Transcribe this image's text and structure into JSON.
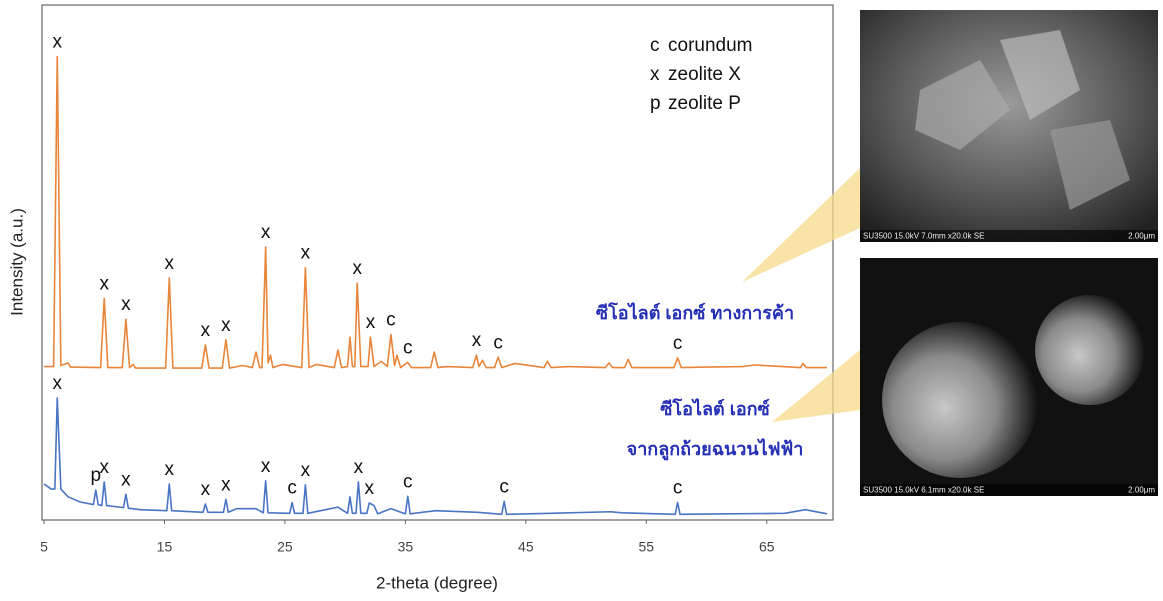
{
  "chart_data": {
    "type": "line",
    "xlabel": "2-theta (degree)",
    "ylabel": "Intensity (a.u.)",
    "xlim": [
      5,
      70
    ],
    "xticks": [
      5,
      15,
      25,
      35,
      45,
      55,
      65
    ],
    "ylim": [
      0,
      100
    ],
    "legend_text": [
      {
        "symbol": "c",
        "label": "corundum"
      },
      {
        "symbol": "x",
        "label": "zeolite X"
      },
      {
        "symbol": "p",
        "label": "zeolite P"
      }
    ],
    "series": [
      {
        "name": [
          "ซีโอไลต์ เอกซ์ ทางการค้า"
        ],
        "color": "#e8853a",
        "x": [
          5,
          5.8,
          6.1,
          6.4,
          7.0,
          7.2,
          9.7,
          10.0,
          10.3,
          11.5,
          11.8,
          12.1,
          12.4,
          12.6,
          15.1,
          15.4,
          15.7,
          18.1,
          18.4,
          18.7,
          19.8,
          20.1,
          20.4,
          21.5,
          22.3,
          22.6,
          22.9,
          23.1,
          23.4,
          23.6,
          23.8,
          24.0,
          24.8,
          26.4,
          26.7,
          27.0,
          27.6,
          29.1,
          29.4,
          29.7,
          30.2,
          30.4,
          30.6,
          30.8,
          31.0,
          31.3,
          31.9,
          32.1,
          32.4,
          33.0,
          33.5,
          33.8,
          34.1,
          34.3,
          34.6,
          35.2,
          35.5,
          37.1,
          37.4,
          37.7,
          38.5,
          40.6,
          40.9,
          41.1,
          41.4,
          41.7,
          42.4,
          42.7,
          43.0,
          44.1,
          46.5,
          46.8,
          47.1,
          48.5,
          51.6,
          51.9,
          52.2,
          53.2,
          53.5,
          53.8,
          57.3,
          57.6,
          57.9,
          60,
          63,
          64,
          67.8,
          68.0,
          68.3,
          70
        ],
        "values": [
          29.8,
          29.8,
          90,
          30,
          30.5,
          29.7,
          29.6,
          43,
          29.6,
          29.6,
          39,
          29.6,
          30.2,
          29.5,
          29.5,
          47,
          29.5,
          29.5,
          34,
          29.5,
          29.5,
          35,
          29.5,
          30,
          29.6,
          32.6,
          29.6,
          29.6,
          53,
          30.5,
          32,
          29.6,
          30.2,
          29.6,
          49,
          29.6,
          30.2,
          29.6,
          33,
          29.6,
          29.8,
          35.5,
          29.8,
          29.8,
          46,
          29.8,
          29.8,
          35.5,
          29.8,
          30.8,
          29.8,
          36,
          30,
          32,
          29.6,
          30.6,
          29.6,
          29.6,
          32.6,
          29.6,
          29.8,
          29.6,
          32,
          29.8,
          31,
          29.6,
          29.6,
          31.6,
          29.6,
          30.4,
          29.6,
          30.8,
          29.6,
          29.8,
          29.6,
          30.5,
          29.6,
          29.6,
          31.2,
          29.6,
          29.6,
          31.5,
          29.6,
          29.7,
          29.8,
          30.1,
          29.6,
          30.4,
          29.6,
          29.6
        ],
        "annotations": [
          {
            "text": "x",
            "x": 6.1
          },
          {
            "text": "x",
            "x": 10.0
          },
          {
            "text": "x",
            "x": 11.8
          },
          {
            "text": "x",
            "x": 15.4
          },
          {
            "text": "x",
            "x": 18.4
          },
          {
            "text": "x",
            "x": 20.1
          },
          {
            "text": "x",
            "x": 23.4
          },
          {
            "text": "x",
            "x": 26.7
          },
          {
            "text": "x",
            "x": 31.0
          },
          {
            "text": "x",
            "x": 32.1
          },
          {
            "text": "c",
            "x": 33.8
          },
          {
            "text": "c",
            "x": 35.2
          },
          {
            "text": "x",
            "x": 40.9
          },
          {
            "text": "c",
            "x": 42.7
          },
          {
            "text": "c",
            "x": 57.6
          }
        ]
      },
      {
        "name": [
          "ซีโอไลต์ เอกซ์",
          "จากลูกถ้วยฉนวนไฟฟ้า"
        ],
        "color": "#4a74c4",
        "x": [
          5,
          5.6,
          5.9,
          6.1,
          6.4,
          7,
          8,
          9.1,
          9.3,
          9.5,
          9.8,
          10.0,
          10.2,
          11.6,
          11.8,
          12.0,
          13,
          15.2,
          15.4,
          15.6,
          18.2,
          18.4,
          18.6,
          19.9,
          20.1,
          20.3,
          21.0,
          22.6,
          23.2,
          23.4,
          23.6,
          25.4,
          25.6,
          25.8,
          26.5,
          26.7,
          26.9,
          29.4,
          30.2,
          30.4,
          30.6,
          30.9,
          31.1,
          31.3,
          31.8,
          32.0,
          32.4,
          32.7,
          33.8,
          35.0,
          35.2,
          35.4,
          37.5,
          41,
          43.0,
          43.2,
          43.4,
          47,
          52,
          53,
          57.4,
          57.6,
          57.8,
          62,
          66.5,
          68.2,
          70
        ],
        "values": [
          7,
          6,
          6,
          23.7,
          6,
          4.5,
          3.5,
          3,
          5.8,
          3,
          2.8,
          7.4,
          2.8,
          2.4,
          5,
          2.3,
          2,
          1.8,
          7,
          1.8,
          1.5,
          3.1,
          1.5,
          1.5,
          4,
          1.5,
          2.2,
          2.2,
          1.4,
          7.6,
          1.4,
          1.3,
          3.4,
          1.3,
          1.3,
          6.8,
          1.3,
          2.5,
          1.3,
          4.5,
          1.3,
          1.3,
          7.4,
          1.3,
          1.3,
          3.3,
          2.8,
          1.2,
          2.2,
          1.2,
          4.6,
          1.2,
          1.8,
          1.5,
          1.1,
          3.6,
          1.1,
          1.3,
          1.6,
          1.4,
          1.1,
          3.4,
          1.1,
          1.2,
          1.3,
          2,
          1.2
        ],
        "annotations": [
          {
            "text": "x",
            "x": 6.1
          },
          {
            "text": "p",
            "x": 9.3
          },
          {
            "text": "x",
            "x": 10.0
          },
          {
            "text": "x",
            "x": 11.8
          },
          {
            "text": "x",
            "x": 15.4
          },
          {
            "text": "x",
            "x": 18.4
          },
          {
            "text": "x",
            "x": 20.1
          },
          {
            "text": "x",
            "x": 23.4
          },
          {
            "text": "c",
            "x": 25.6
          },
          {
            "text": "x",
            "x": 26.7
          },
          {
            "text": "x",
            "x": 31.1
          },
          {
            "text": "x",
            "x": 32.0
          },
          {
            "text": "c",
            "x": 35.2
          },
          {
            "text": "c",
            "x": 43.2
          },
          {
            "text": "c",
            "x": 57.6
          }
        ]
      }
    ],
    "images": [
      {
        "caption": "SU3500 15.0kV 7.0mm x20.0k SE",
        "scale": "2.00μm"
      },
      {
        "caption": "SU3500 15.0kV 6.1mm x20.0k SE",
        "scale": "2.00μm"
      }
    ]
  }
}
